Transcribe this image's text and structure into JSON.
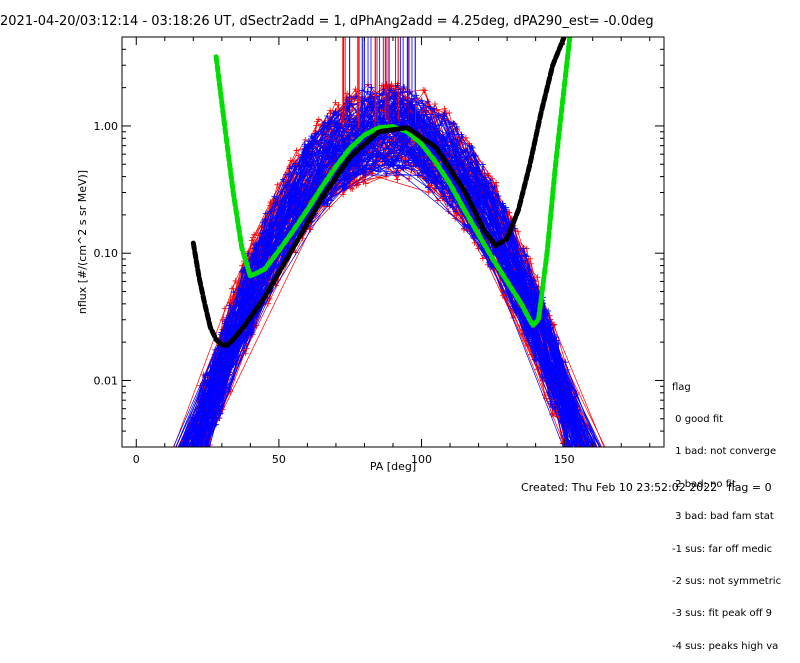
{
  "title": "2021-04-20/03:12:14 - 03:18:26 UT, dSectr2add = 1, dPhAng2add = 4.25deg, dPA290_est=  -0.0deg",
  "footer": {
    "created": "Created: Thu Feb 10 23:52:02 2022",
    "flag": "flag = 0"
  },
  "legend": {
    "heading": "flag",
    "entries": [
      " 0 good fit",
      " 1 bad: not converge",
      " 2 bad: no fit",
      " 3 bad: bad fam stat",
      "-1 sus: far off medic",
      "-2 sus: not symmetric",
      "-3 sus: fit peak off 9",
      "-4 sus: peaks high va"
    ]
  },
  "chart_data": {
    "type": "line",
    "xlabel": "PA [deg]",
    "ylabel": "nflux [#/(cm^2 s sr MeV)]",
    "xlim": [
      -5,
      185
    ],
    "ylim": [
      0.003,
      5.0
    ],
    "ylog": true,
    "xticks": [
      0,
      50,
      100,
      150
    ],
    "yticks": [
      0.01,
      0.1,
      1.0
    ],
    "ytick_labels": [
      "0.01",
      "0.10",
      "1.00"
    ],
    "colors": {
      "data_red": "#ff0000",
      "data_blue": "#0000ff",
      "fit_green": "#00dd00",
      "fit_black": "#000000"
    },
    "series": [
      {
        "color": "#00dd00",
        "style": "thick-dashed",
        "x": [
          28,
          31,
          34,
          37,
          40,
          45,
          50,
          55,
          60,
          65,
          70,
          75,
          80,
          85,
          90,
          95,
          100,
          105,
          110,
          115,
          120,
          125,
          130,
          135,
          139,
          141,
          144,
          147,
          150,
          152
        ],
        "y": [
          3.5,
          1.0,
          0.3,
          0.11,
          0.066,
          0.075,
          0.105,
          0.15,
          0.22,
          0.33,
          0.48,
          0.67,
          0.85,
          0.97,
          0.99,
          0.9,
          0.72,
          0.52,
          0.35,
          0.22,
          0.14,
          0.09,
          0.06,
          0.04,
          0.027,
          0.03,
          0.1,
          0.5,
          2.0,
          5.0
        ]
      },
      {
        "color": "#000000",
        "style": "thick-dashed",
        "x": [
          20,
          22,
          24,
          26,
          28,
          30,
          32,
          34,
          38,
          45,
          55,
          65,
          75,
          85,
          95,
          105,
          115,
          122,
          126,
          130,
          134,
          138,
          142,
          146,
          150
        ],
        "y": [
          0.12,
          0.065,
          0.04,
          0.026,
          0.021,
          0.019,
          0.019,
          0.021,
          0.027,
          0.045,
          0.11,
          0.27,
          0.57,
          0.9,
          0.97,
          0.68,
          0.31,
          0.15,
          0.115,
          0.13,
          0.22,
          0.5,
          1.3,
          3.0,
          5.0
        ]
      }
    ]
  }
}
